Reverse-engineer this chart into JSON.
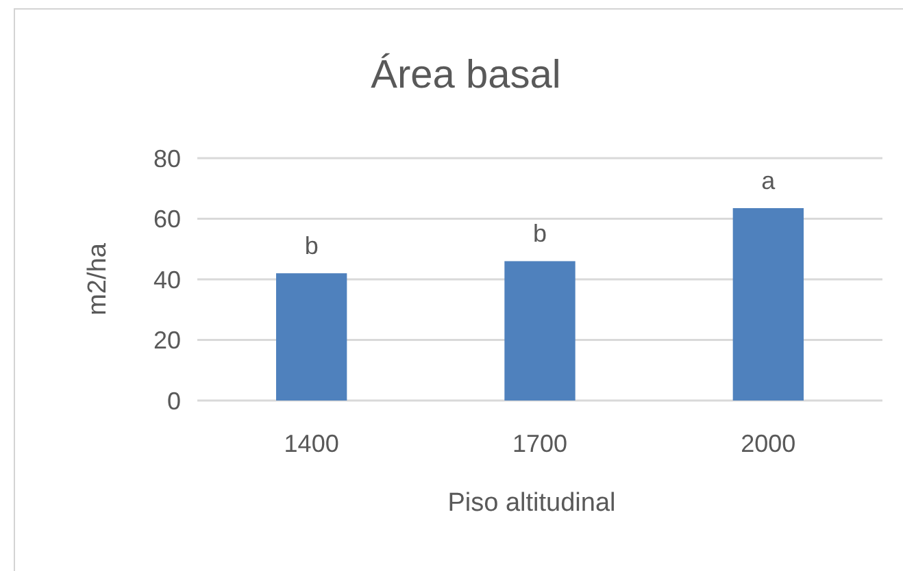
{
  "chart_data": {
    "type": "bar",
    "title": "Área basal",
    "xlabel": "Piso altitudinal",
    "ylabel": "m2/ha",
    "categories": [
      "1400",
      "1700",
      "2000"
    ],
    "values": [
      42,
      46,
      63.5
    ],
    "color": "#4f81bd",
    "ylim": [
      0,
      80
    ],
    "yticks": [
      0,
      20,
      40,
      60,
      80
    ],
    "grid": "y",
    "annotations": [
      {
        "text": "b",
        "x": "1400",
        "y": 42
      },
      {
        "text": "b",
        "x": "1700",
        "y": 46
      },
      {
        "text": "a",
        "x": "2000",
        "y": 63.5
      }
    ]
  }
}
